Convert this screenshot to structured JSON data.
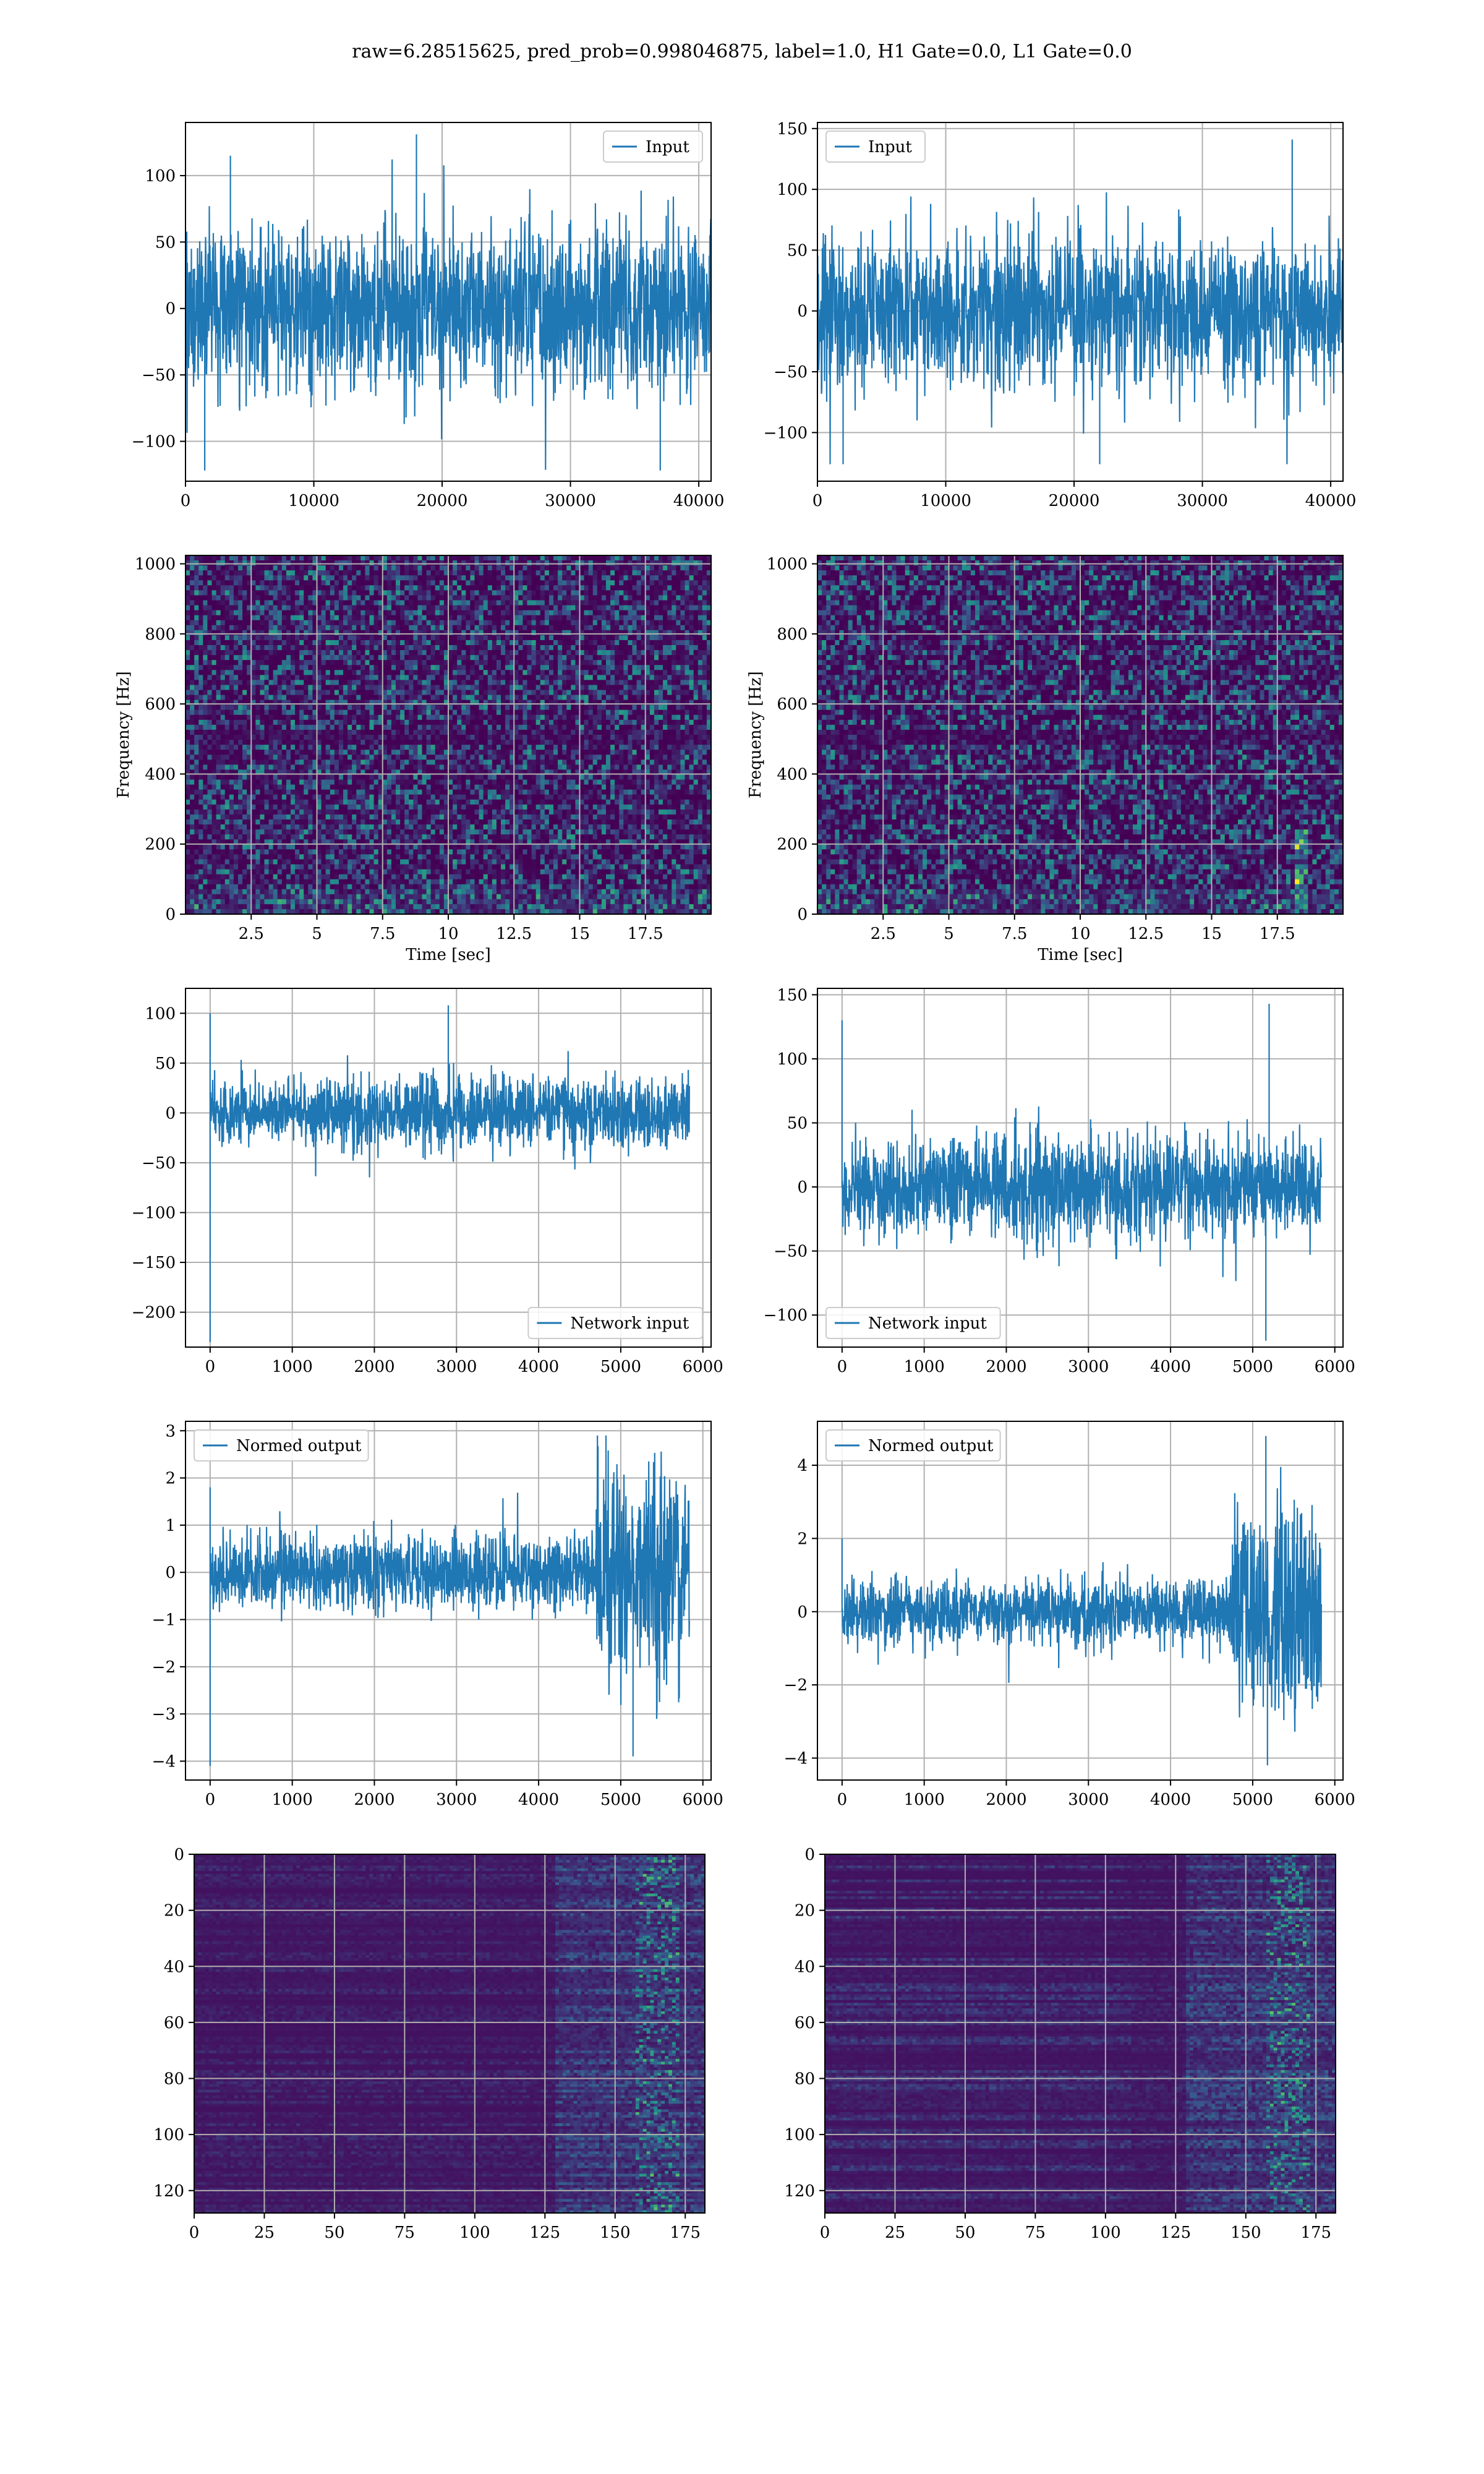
{
  "figure": {
    "suptitle": "raw=6.28515625, pred_prob=0.998046875, label=1.0, H1 Gate=0.0, L1 Gate=0.0"
  },
  "colors": {
    "line": "#1f77b4",
    "viridis": [
      "#440154",
      "#3b528b",
      "#21918c",
      "#5ec962",
      "#fde725"
    ],
    "grid": "#b0b0b0"
  },
  "chart_data": [
    {
      "id": "r1l",
      "type": "line",
      "title": "",
      "xlabel": "",
      "ylabel": "",
      "xlim": [
        0,
        40960
      ],
      "ylim": [
        -130,
        140
      ],
      "xticks": [
        0,
        10000,
        20000,
        30000,
        40000
      ],
      "yticks": [
        -100,
        -50,
        0,
        50,
        100
      ],
      "grid": true,
      "legend": "top-right",
      "series": [
        {
          "name": "Input",
          "n": 40960,
          "amplitude": 70,
          "min": -122,
          "max": 131
        }
      ]
    },
    {
      "id": "r1r",
      "type": "line",
      "title": "",
      "xlabel": "",
      "ylabel": "",
      "xlim": [
        0,
        40960
      ],
      "ylim": [
        -140,
        155
      ],
      "xticks": [
        0,
        10000,
        20000,
        30000,
        40000
      ],
      "yticks": [
        -100,
        -50,
        0,
        50,
        100,
        150
      ],
      "grid": true,
      "legend": "top-left",
      "series": [
        {
          "name": "Input",
          "n": 40960,
          "amplitude": 70,
          "min": -126,
          "max": 141
        }
      ]
    },
    {
      "id": "r2l",
      "type": "heatmap",
      "title": "",
      "xlabel": "Time [sec]",
      "ylabel": "Frequency [Hz]",
      "xlim": [
        0,
        20
      ],
      "ylim": [
        0,
        1024
      ],
      "xticks": [
        2.5,
        5.0,
        7.5,
        10.0,
        12.5,
        15.0,
        17.5
      ],
      "yticks": [
        0,
        200,
        400,
        600,
        800,
        1000
      ],
      "grid": true,
      "colormap": "viridis"
    },
    {
      "id": "r2r",
      "type": "heatmap",
      "title": "",
      "xlabel": "Time [sec]",
      "ylabel": "Frequency [Hz]",
      "xlim": [
        0,
        20
      ],
      "ylim": [
        0,
        1024
      ],
      "xticks": [
        2.5,
        5.0,
        7.5,
        10.0,
        12.5,
        15.0,
        17.5
      ],
      "yticks": [
        0,
        200,
        400,
        600,
        800,
        1000
      ],
      "grid": true,
      "colormap": "viridis"
    },
    {
      "id": "r3l",
      "type": "line",
      "title": "",
      "xlabel": "",
      "ylabel": "",
      "xlim": [
        -300,
        6100
      ],
      "ylim": [
        -235,
        125
      ],
      "xticks": [
        0,
        1000,
        2000,
        3000,
        4000,
        5000,
        6000
      ],
      "yticks": [
        -200,
        -150,
        -100,
        -50,
        0,
        50,
        100
      ],
      "grid": true,
      "legend": "bottom-right",
      "series": [
        {
          "name": "Network input",
          "n": 5836,
          "amplitude": 40,
          "min": -230,
          "max": 108
        }
      ]
    },
    {
      "id": "r3r",
      "type": "line",
      "title": "",
      "xlabel": "",
      "ylabel": "",
      "xlim": [
        -300,
        6100
      ],
      "ylim": [
        -125,
        155
      ],
      "xticks": [
        0,
        1000,
        2000,
        3000,
        4000,
        5000,
        6000
      ],
      "yticks": [
        -100,
        -50,
        0,
        50,
        100,
        150
      ],
      "grid": true,
      "legend": "bottom-left",
      "series": [
        {
          "name": "Network input",
          "n": 5836,
          "amplitude": 45,
          "min": -114,
          "max": 143
        }
      ]
    },
    {
      "id": "r4l",
      "type": "line",
      "title": "",
      "xlabel": "",
      "ylabel": "",
      "xlim": [
        -300,
        6100
      ],
      "ylim": [
        -4.4,
        3.2
      ],
      "xticks": [
        0,
        1000,
        2000,
        3000,
        4000,
        5000,
        6000
      ],
      "yticks": [
        -4,
        -3,
        -2,
        -1,
        0,
        1,
        2,
        3
      ],
      "grid": true,
      "legend": "top-left",
      "series": [
        {
          "name": "Normed output",
          "n": 5836,
          "amplitude": 0.9,
          "burst_start": 4700,
          "burst_amplitude": 2.4,
          "min": -4.1,
          "max": 2.9
        }
      ]
    },
    {
      "id": "r4r",
      "type": "line",
      "title": "",
      "xlabel": "",
      "ylabel": "",
      "xlim": [
        -300,
        6100
      ],
      "ylim": [
        -4.6,
        5.2
      ],
      "xticks": [
        0,
        1000,
        2000,
        3000,
        4000,
        5000,
        6000
      ],
      "yticks": [
        -4,
        -2,
        0,
        2,
        4
      ],
      "grid": true,
      "legend": "top-left",
      "series": [
        {
          "name": "Normed output",
          "n": 5836,
          "amplitude": 1.0,
          "burst_start": 4750,
          "burst_amplitude": 3.2,
          "min": -4.2,
          "max": 4.8
        }
      ]
    },
    {
      "id": "r5l",
      "type": "heatmap",
      "title": "",
      "xlabel": "",
      "ylabel": "",
      "xlim": [
        0,
        182
      ],
      "ylim": [
        128,
        0
      ],
      "xticks": [
        0,
        25,
        50,
        75,
        100,
        125,
        150,
        175
      ],
      "yticks": [
        0,
        20,
        40,
        60,
        80,
        100,
        120
      ],
      "grid": true,
      "colormap": "viridis"
    },
    {
      "id": "r5r",
      "type": "heatmap",
      "title": "",
      "xlabel": "",
      "ylabel": "",
      "xlim": [
        0,
        182
      ],
      "ylim": [
        128,
        0
      ],
      "xticks": [
        0,
        25,
        50,
        75,
        100,
        125,
        150,
        175
      ],
      "yticks": [
        0,
        20,
        40,
        60,
        80,
        100,
        120
      ],
      "grid": true,
      "colormap": "viridis"
    }
  ]
}
